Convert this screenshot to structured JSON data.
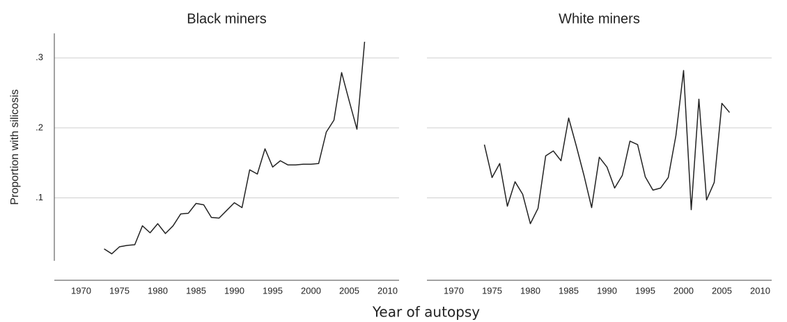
{
  "xlabel": "Year of autopsy",
  "chart_data": [
    {
      "type": "line",
      "title": "Black miners",
      "ylabel": "Proportion with silicosis",
      "x": [
        1973,
        1974,
        1975,
        1976,
        1977,
        1978,
        1979,
        1980,
        1981,
        1982,
        1983,
        1984,
        1985,
        1986,
        1987,
        1988,
        1989,
        1990,
        1991,
        1992,
        1993,
        1994,
        1995,
        1996,
        1997,
        1998,
        1999,
        2000,
        2001,
        2002,
        2003,
        2004,
        2005,
        2006,
        2007
      ],
      "values": [
        0.027,
        0.02,
        0.03,
        0.032,
        0.033,
        0.06,
        0.05,
        0.063,
        0.049,
        0.06,
        0.077,
        0.078,
        0.092,
        0.09,
        0.072,
        0.071,
        0.082,
        0.093,
        0.086,
        0.14,
        0.134,
        0.17,
        0.144,
        0.153,
        0.147,
        0.147,
        0.148,
        0.148,
        0.149,
        0.194,
        0.211,
        0.279,
        0.238,
        0.198,
        0.323
      ],
      "color": "#222222",
      "xlim": [
        1966.5,
        2011.5
      ],
      "ylim": [
        0.01,
        0.335
      ],
      "xticks": [
        1970,
        1975,
        1980,
        1985,
        1990,
        1995,
        2000,
        2005,
        2010
      ],
      "yticks": [
        {
          "value": 0.1,
          "label": ".1"
        },
        {
          "value": 0.2,
          "label": ".2"
        },
        {
          "value": 0.3,
          "label": ".3"
        }
      ],
      "grid": true
    },
    {
      "type": "line",
      "title": "White miners",
      "x": [
        1974,
        1975,
        1976,
        1977,
        1978,
        1979,
        1980,
        1981,
        1982,
        1983,
        1984,
        1985,
        1986,
        1987,
        1988,
        1989,
        1990,
        1991,
        1992,
        1993,
        1994,
        1995,
        1996,
        1997,
        1998,
        1999,
        2000,
        2001,
        2002,
        2003,
        2004,
        2005,
        2006
      ],
      "values": [
        0.176,
        0.129,
        0.149,
        0.088,
        0.123,
        0.105,
        0.063,
        0.085,
        0.16,
        0.167,
        0.153,
        0.214,
        0.174,
        0.132,
        0.086,
        0.158,
        0.144,
        0.114,
        0.132,
        0.181,
        0.176,
        0.13,
        0.111,
        0.114,
        0.129,
        0.189,
        0.282,
        0.083,
        0.241,
        0.097,
        0.122,
        0.235,
        0.222
      ],
      "color": "#222222",
      "xlim": [
        1966.5,
        2011.5
      ],
      "ylim": [
        0.01,
        0.335
      ],
      "xticks": [
        1970,
        1975,
        1980,
        1985,
        1990,
        1995,
        2000,
        2005,
        2010
      ],
      "grid": true
    }
  ]
}
